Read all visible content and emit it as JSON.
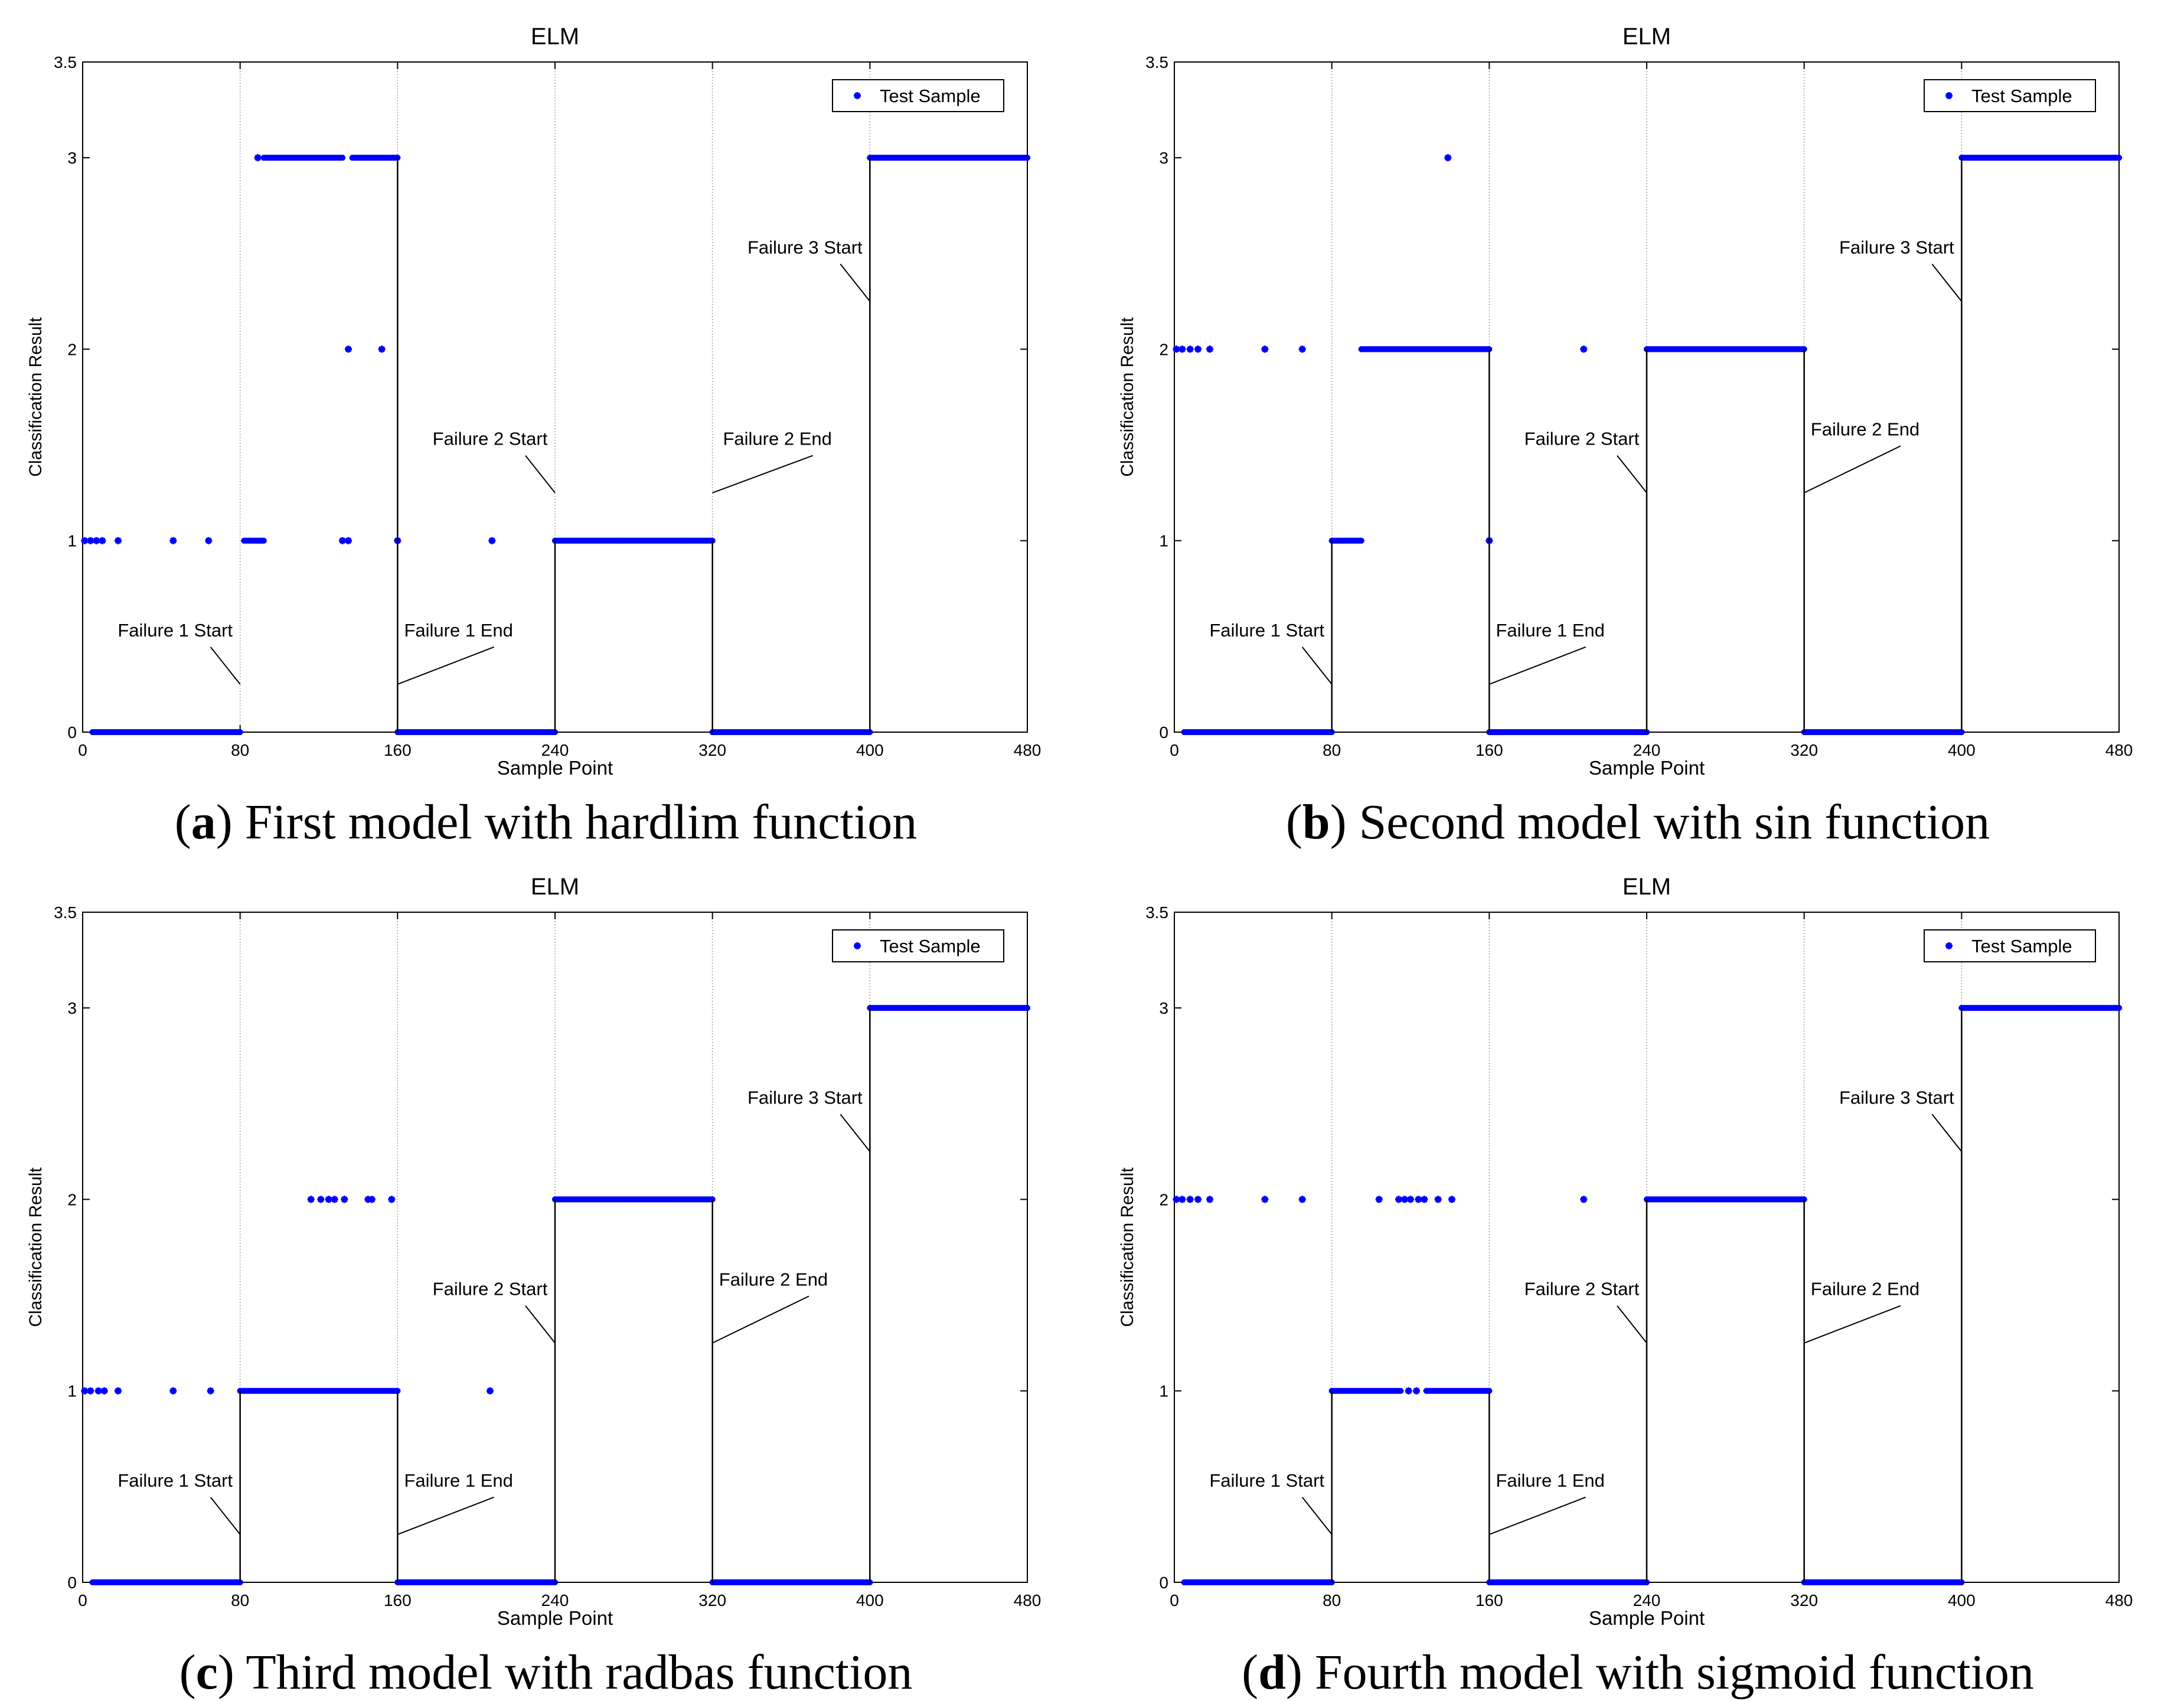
{
  "colors": {
    "marker": "#0000ff",
    "axis": "#000000",
    "background": "#ffffff"
  },
  "chart_data": [
    {
      "panel": "a",
      "type": "scatter",
      "title": "ELM",
      "xlabel": "Sample Point",
      "ylabel": "Classification Result",
      "xlim": [
        0,
        480
      ],
      "ylim": [
        0,
        3.5
      ],
      "xticks": [
        0,
        80,
        160,
        240,
        320,
        400,
        480
      ],
      "yticks": [
        0,
        1,
        2,
        3,
        3.5
      ],
      "legend": {
        "label": "Test Sample",
        "placement": "top-right"
      },
      "caption": {
        "letter": "a",
        "text": "First model with hardlim function"
      },
      "boundaries": [
        80,
        160,
        240,
        320,
        400
      ],
      "series": [
        {
          "name": "Test Sample",
          "segments": [
            [
              5,
              80,
              0
            ],
            [
              160,
              240,
              0
            ],
            [
              320,
              400,
              0
            ],
            [
              82,
              92,
              1
            ],
            [
              240,
              320,
              1
            ],
            [
              92,
              132,
              3
            ],
            [
              137,
              160,
              3
            ],
            [
              400,
              480,
              3
            ]
          ],
          "points": [
            [
              1,
              1
            ],
            [
              4,
              1
            ],
            [
              7,
              1
            ],
            [
              10,
              1
            ],
            [
              18,
              1
            ],
            [
              46,
              1
            ],
            [
              64,
              1
            ],
            [
              132,
              1
            ],
            [
              135,
              1
            ],
            [
              160,
              1
            ],
            [
              208,
              1
            ],
            [
              89,
              3
            ],
            [
              135,
              2
            ],
            [
              152,
              2
            ]
          ]
        }
      ],
      "annotations": [
        {
          "label": "Failure 1 Start",
          "x": 80,
          "y": 0.25,
          "tx": 47,
          "ty": 0.5
        },
        {
          "label": "Failure 1 End",
          "x": 160,
          "y": 0.25,
          "tx": 191,
          "ty": 0.5
        },
        {
          "label": "Failure 2 Start",
          "x": 240,
          "y": 1.25,
          "tx": 207,
          "ty": 1.5
        },
        {
          "label": "Failure 2 End",
          "x": 320,
          "y": 1.25,
          "tx": 353,
          "ty": 1.5
        },
        {
          "label": "Failure 3 Start",
          "x": 400,
          "y": 2.25,
          "tx": 367,
          "ty": 2.5
        }
      ]
    },
    {
      "panel": "b",
      "type": "scatter",
      "title": "ELM",
      "xlabel": "Sample Point",
      "ylabel": "Classification Result",
      "xlim": [
        0,
        480
      ],
      "ylim": [
        0,
        3.5
      ],
      "xticks": [
        0,
        80,
        160,
        240,
        320,
        400,
        480
      ],
      "yticks": [
        0,
        1,
        2,
        3,
        3.5
      ],
      "legend": {
        "label": "Test Sample",
        "placement": "top-right"
      },
      "caption": {
        "letter": "b",
        "text": "Second model with sin function"
      },
      "boundaries": [
        80,
        160,
        240,
        320,
        400
      ],
      "series": [
        {
          "name": "Test Sample",
          "segments": [
            [
              5,
              80,
              0
            ],
            [
              160,
              240,
              0
            ],
            [
              320,
              400,
              0
            ],
            [
              80,
              95,
              1
            ],
            [
              95,
              160,
              2
            ],
            [
              240,
              320,
              2
            ],
            [
              400,
              480,
              3
            ]
          ],
          "points": [
            [
              1,
              2
            ],
            [
              4,
              2
            ],
            [
              8,
              2
            ],
            [
              12,
              2
            ],
            [
              18,
              2
            ],
            [
              46,
              2
            ],
            [
              65,
              2
            ],
            [
              160,
              1
            ],
            [
              139,
              3
            ],
            [
              208,
              2
            ]
          ]
        }
      ],
      "annotations": [
        {
          "label": "Failure 1 Start",
          "x": 80,
          "y": 0.25,
          "tx": 47,
          "ty": 0.5
        },
        {
          "label": "Failure 1 End",
          "x": 160,
          "y": 0.25,
          "tx": 191,
          "ty": 0.5
        },
        {
          "label": "Failure 2 Start",
          "x": 240,
          "y": 1.25,
          "tx": 207,
          "ty": 1.5
        },
        {
          "label": "Failure 2 End",
          "x": 320,
          "y": 1.25,
          "tx": 351,
          "ty": 1.55
        },
        {
          "label": "Failure 3 Start",
          "x": 400,
          "y": 2.25,
          "tx": 367,
          "ty": 2.5
        }
      ]
    },
    {
      "panel": "c",
      "type": "scatter",
      "title": "ELM",
      "xlabel": "Sample Point",
      "ylabel": "Classification Result",
      "xlim": [
        0,
        480
      ],
      "ylim": [
        0,
        3.5
      ],
      "xticks": [
        0,
        80,
        160,
        240,
        320,
        400,
        480
      ],
      "yticks": [
        0,
        1,
        2,
        3,
        3.5
      ],
      "legend": {
        "label": "Test Sample",
        "placement": "top-right"
      },
      "caption": {
        "letter": "c",
        "text": "Third model with radbas function"
      },
      "boundaries": [
        80,
        160,
        240,
        320,
        400
      ],
      "series": [
        {
          "name": "Test Sample",
          "segments": [
            [
              5,
              80,
              0
            ],
            [
              160,
              240,
              0
            ],
            [
              320,
              400,
              0
            ],
            [
              80,
              160,
              1
            ],
            [
              240,
              320,
              2
            ],
            [
              400,
              480,
              3
            ]
          ],
          "points": [
            [
              1,
              1
            ],
            [
              4,
              1
            ],
            [
              8,
              1
            ],
            [
              11,
              1
            ],
            [
              18,
              1
            ],
            [
              46,
              1
            ],
            [
              65,
              1
            ],
            [
              207,
              1
            ],
            [
              116,
              2
            ],
            [
              121,
              2
            ],
            [
              125,
              2
            ],
            [
              128,
              2
            ],
            [
              133,
              2
            ],
            [
              145,
              2
            ],
            [
              147,
              2
            ],
            [
              157,
              2
            ]
          ]
        }
      ],
      "annotations": [
        {
          "label": "Failure 1 Start",
          "x": 80,
          "y": 0.25,
          "tx": 47,
          "ty": 0.5
        },
        {
          "label": "Failure 1 End",
          "x": 160,
          "y": 0.25,
          "tx": 191,
          "ty": 0.5
        },
        {
          "label": "Failure 2 Start",
          "x": 240,
          "y": 1.25,
          "tx": 207,
          "ty": 1.5
        },
        {
          "label": "Failure 2 End",
          "x": 320,
          "y": 1.25,
          "tx": 351,
          "ty": 1.55
        },
        {
          "label": "Failure 3 Start",
          "x": 400,
          "y": 2.25,
          "tx": 367,
          "ty": 2.5
        }
      ]
    },
    {
      "panel": "d",
      "type": "scatter",
      "title": "ELM",
      "xlabel": "Sample Point",
      "ylabel": "Classification Result",
      "xlim": [
        0,
        480
      ],
      "ylim": [
        0,
        3.5
      ],
      "xticks": [
        0,
        80,
        160,
        240,
        320,
        400,
        480
      ],
      "yticks": [
        0,
        1,
        2,
        3,
        3.5
      ],
      "legend": {
        "label": "Test Sample",
        "placement": "top-right"
      },
      "caption": {
        "letter": "d",
        "text": "Fourth model with sigmoid function"
      },
      "boundaries": [
        80,
        160,
        240,
        320,
        400
      ],
      "series": [
        {
          "name": "Test Sample",
          "segments": [
            [
              5,
              80,
              0
            ],
            [
              160,
              240,
              0
            ],
            [
              320,
              400,
              0
            ],
            [
              80,
              115,
              1
            ],
            [
              128,
              160,
              1
            ],
            [
              240,
              320,
              2
            ],
            [
              400,
              480,
              3
            ]
          ],
          "points": [
            [
              1,
              2
            ],
            [
              4,
              2
            ],
            [
              8,
              2
            ],
            [
              12,
              2
            ],
            [
              18,
              2
            ],
            [
              46,
              2
            ],
            [
              65,
              2
            ],
            [
              104,
              2
            ],
            [
              114,
              2
            ],
            [
              117,
              2
            ],
            [
              120,
              2
            ],
            [
              124,
              2
            ],
            [
              127,
              2
            ],
            [
              134,
              2
            ],
            [
              141,
              2
            ],
            [
              208,
              2
            ],
            [
              119,
              1
            ],
            [
              123,
              1
            ]
          ]
        }
      ],
      "annotations": [
        {
          "label": "Failure 1 Start",
          "x": 80,
          "y": 0.25,
          "tx": 47,
          "ty": 0.5
        },
        {
          "label": "Failure 1 End",
          "x": 160,
          "y": 0.25,
          "tx": 191,
          "ty": 0.5
        },
        {
          "label": "Failure 2 Start",
          "x": 240,
          "y": 1.25,
          "tx": 207,
          "ty": 1.5
        },
        {
          "label": "Failure 2 End",
          "x": 320,
          "y": 1.25,
          "tx": 351,
          "ty": 1.5
        },
        {
          "label": "Failure 3 Start",
          "x": 400,
          "y": 2.25,
          "tx": 367,
          "ty": 2.5
        }
      ]
    }
  ]
}
